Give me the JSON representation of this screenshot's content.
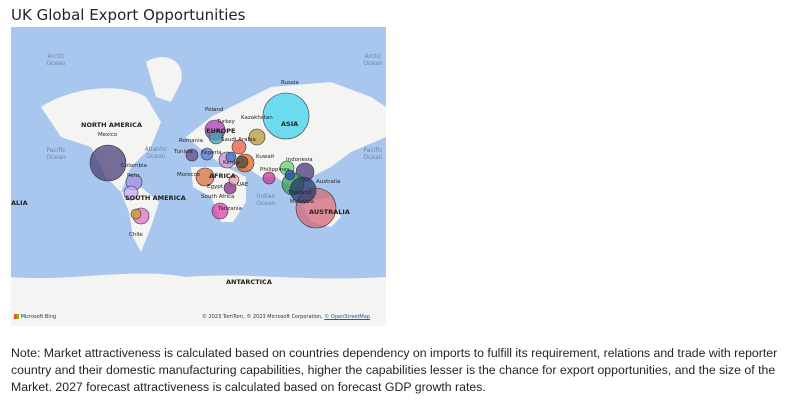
{
  "title": "UK Global Export Opportunities",
  "map": {
    "ocean_labels": [
      "Arctic Ocean",
      "Arctic Ocean",
      "Pacific Ocean",
      "Pacific Ocean",
      "Atlantic Ocean",
      "Indian Ocean"
    ],
    "continent_labels": [
      "NORTH AMERICA",
      "SOUTH AMERICA",
      "AFRICA",
      "EUROPE",
      "ASIA",
      "AUSTRALIA",
      "ANTARCTICA",
      "ALIA"
    ],
    "countries": [
      "Russia",
      "Poland",
      "Kazakhstan",
      "Turkey",
      "Romania",
      "Saudi Arabia",
      "Tunisia",
      "Nigeria",
      "Kuwait",
      "Indonesia",
      "Kenya",
      "Philippines",
      "Morocco",
      "Egypt",
      "UAE",
      "Australia",
      "Thailand",
      "Malaysia",
      "South Africa",
      "Tanzania",
      "Mexico",
      "Colombia",
      "Peru",
      "Chile"
    ],
    "bing_logo": "Microsoft Bing",
    "copyright": "© 2023 TomTom, © 2023 Microsoft Corporation,",
    "osm_link": "© OpenStreetMap"
  },
  "colors": {
    "ocean": "#a9c6ee",
    "land": "#f4f4f2"
  },
  "note": "Note: Market attractiveness is calculated based on countries dependency on imports to fulfill its requirement, relations and trade with reporter country and their domestic manufacturing capabilities, higher the capabilities lesser is the chance for export opportunities, and the size of the Market. 2027 forecast attractiveness is calculated based on forecast GDP growth rates."
}
